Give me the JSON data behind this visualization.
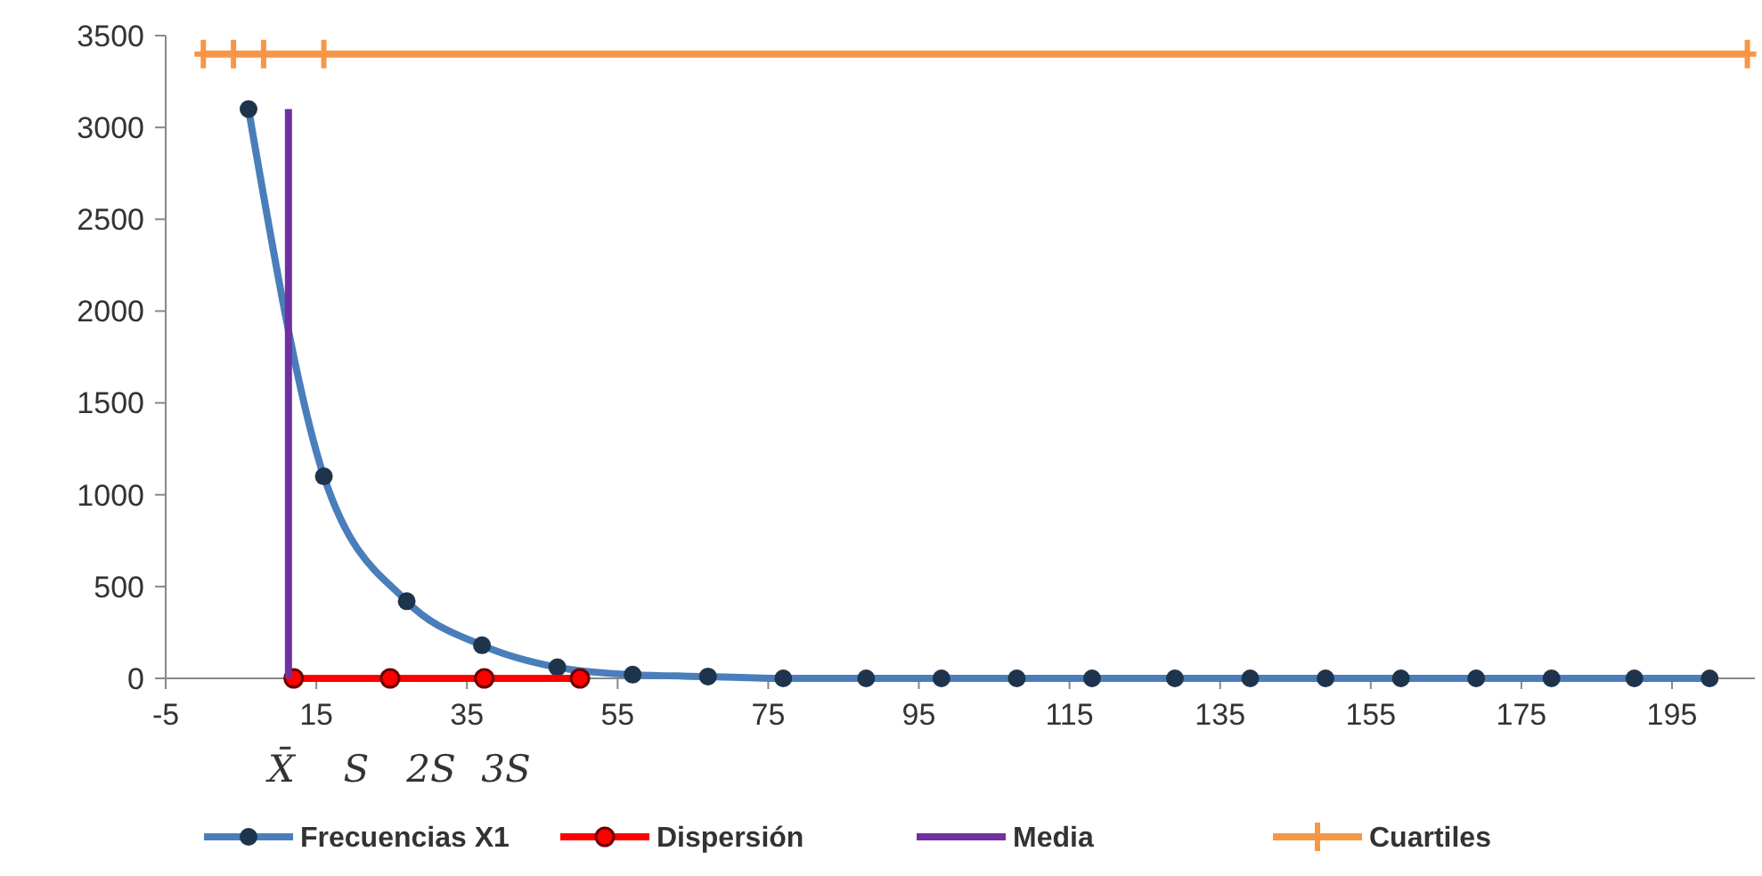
{
  "chart_data": {
    "type": "line",
    "xlim": [
      -5,
      206
    ],
    "xticks": [
      -5,
      15,
      35,
      55,
      75,
      95,
      115,
      135,
      155,
      175,
      195
    ],
    "ylim": [
      0,
      3500
    ],
    "yticks": [
      0,
      500,
      1000,
      1500,
      2000,
      2500,
      3000,
      3500
    ],
    "grid": false,
    "legend": "bottom",
    "series": [
      {
        "name": "Frecuencias X1",
        "color": "#4a7ebb",
        "marker": "circle",
        "x": [
          6,
          16,
          27,
          37,
          47,
          57,
          67,
          77,
          88,
          98,
          108,
          118,
          129,
          139,
          149,
          159,
          169,
          179,
          190,
          200
        ],
        "values": [
          3100,
          1100,
          420,
          180,
          60,
          20,
          10,
          0,
          0,
          0,
          0,
          0,
          0,
          0,
          0,
          0,
          0,
          0,
          0,
          0
        ]
      },
      {
        "name": "Dispersión",
        "color": "#ff0000",
        "marker": "circle",
        "x": [
          12,
          24.8,
          37.3,
          50
        ],
        "values": [
          0,
          0,
          0,
          0
        ]
      },
      {
        "name": "Media",
        "color": "#7030a0",
        "marker": "none",
        "x": [
          11.3,
          11.3
        ],
        "values": [
          0,
          3100
        ]
      },
      {
        "name": "Cuartiles",
        "color": "#f79646",
        "marker": "cross",
        "x": [
          0,
          4,
          8,
          16,
          205
        ],
        "values": [
          3400,
          3400,
          3400,
          3400,
          3400
        ]
      }
    ],
    "annotations": [
      "X̄",
      "S",
      "2S",
      "3S"
    ]
  }
}
